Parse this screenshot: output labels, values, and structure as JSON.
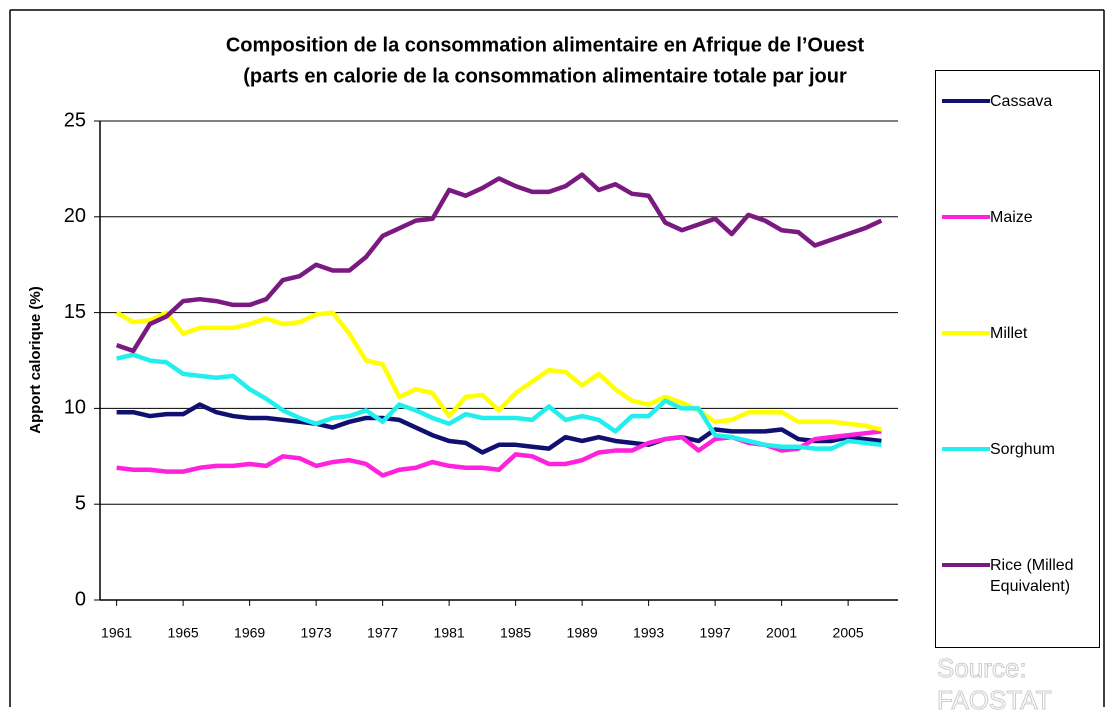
{
  "chart_data": {
    "type": "line",
    "title": "Composition de la consommation alimentaire  en Afrique de  l’Ouest",
    "subtitle": "(parts en calorie  de la consommation alimentaire  totale par jour",
    "y_label": "Apport calorique (%)",
    "source": "Source: FAOSTAT",
    "x": [
      1961,
      1962,
      1963,
      1964,
      1965,
      1966,
      1967,
      1968,
      1969,
      1970,
      1971,
      1972,
      1973,
      1974,
      1975,
      1976,
      1977,
      1978,
      1979,
      1980,
      1981,
      1982,
      1983,
      1984,
      1985,
      1986,
      1987,
      1988,
      1989,
      1990,
      1991,
      1992,
      1993,
      1994,
      1995,
      1996,
      1997,
      1998,
      1999,
      2000,
      2001,
      2002,
      2003,
      2004,
      2005,
      2006,
      2007
    ],
    "xlim": [
      1960,
      2008
    ],
    "xticks": [
      1961,
      1965,
      1969,
      1973,
      1977,
      1981,
      1985,
      1989,
      1993,
      1997,
      2001,
      2005
    ],
    "ylim": [
      0,
      25
    ],
    "yticks": [
      0,
      5,
      10,
      15,
      20,
      25
    ],
    "grid": true,
    "series": [
      {
        "name": "Cassava",
        "color": "#101070",
        "values": [
          9.8,
          9.8,
          9.6,
          9.7,
          9.7,
          10.2,
          9.8,
          9.6,
          9.5,
          9.5,
          9.4,
          9.3,
          9.2,
          9.0,
          9.3,
          9.5,
          9.5,
          9.4,
          9.0,
          8.6,
          8.3,
          8.2,
          7.7,
          8.1,
          8.1,
          8.0,
          7.9,
          8.5,
          8.3,
          8.5,
          8.3,
          8.2,
          8.1,
          8.4,
          8.5,
          8.3,
          8.9,
          8.8,
          8.8,
          8.8,
          8.9,
          8.4,
          8.3,
          8.3,
          8.5,
          8.4,
          8.3
        ]
      },
      {
        "name": "Maize",
        "color": "#ff22dd",
        "values": [
          6.9,
          6.8,
          6.8,
          6.7,
          6.7,
          6.9,
          7.0,
          7.0,
          7.1,
          7.0,
          7.5,
          7.4,
          7.0,
          7.2,
          7.3,
          7.1,
          6.5,
          6.8,
          6.9,
          7.2,
          7.0,
          6.9,
          6.9,
          6.8,
          7.6,
          7.5,
          7.1,
          7.1,
          7.3,
          7.7,
          7.8,
          7.8,
          8.2,
          8.4,
          8.5,
          7.8,
          8.4,
          8.5,
          8.2,
          8.1,
          7.8,
          7.9,
          8.4,
          8.5,
          8.6,
          8.7,
          8.8
        ]
      },
      {
        "name": "Millet",
        "color": "#ffff00",
        "values": [
          15.0,
          14.5,
          14.6,
          15.0,
          13.9,
          14.2,
          14.2,
          14.2,
          14.4,
          14.7,
          14.4,
          14.5,
          14.9,
          15.0,
          13.9,
          12.5,
          12.3,
          10.6,
          11.0,
          10.8,
          9.6,
          10.6,
          10.7,
          9.9,
          10.8,
          11.4,
          12.0,
          11.9,
          11.2,
          11.8,
          11.0,
          10.4,
          10.2,
          10.6,
          10.3,
          9.9,
          9.3,
          9.4,
          9.8,
          9.8,
          9.8,
          9.3,
          9.3,
          9.3,
          9.2,
          9.1,
          8.9
        ]
      },
      {
        "name": "Sorghum",
        "color": "#22eeee",
        "values": [
          12.6,
          12.8,
          12.5,
          12.4,
          11.8,
          11.7,
          11.6,
          11.7,
          11.0,
          10.5,
          9.9,
          9.5,
          9.2,
          9.5,
          9.6,
          9.9,
          9.3,
          10.2,
          9.9,
          9.5,
          9.2,
          9.7,
          9.5,
          9.5,
          9.5,
          9.4,
          10.1,
          9.4,
          9.6,
          9.4,
          8.8,
          9.6,
          9.6,
          10.4,
          10.0,
          10.0,
          8.6,
          8.5,
          8.3,
          8.1,
          8.0,
          8.0,
          7.9,
          7.9,
          8.3,
          8.2,
          8.1
        ]
      },
      {
        "name": "Rice (Milled Equivalent)",
        "color": "#7a1a80",
        "values": [
          13.3,
          13.0,
          14.4,
          14.8,
          15.6,
          15.7,
          15.6,
          15.4,
          15.4,
          15.7,
          16.7,
          16.9,
          17.5,
          17.2,
          17.2,
          17.9,
          19.0,
          19.4,
          19.8,
          19.9,
          21.4,
          21.1,
          21.5,
          22.0,
          21.6,
          21.3,
          21.3,
          21.6,
          22.2,
          21.4,
          21.7,
          21.2,
          21.1,
          19.7,
          19.3,
          19.6,
          19.9,
          19.1,
          20.1,
          19.8,
          19.3,
          19.2,
          18.5,
          18.8,
          19.1,
          19.4,
          19.8
        ]
      }
    ]
  }
}
